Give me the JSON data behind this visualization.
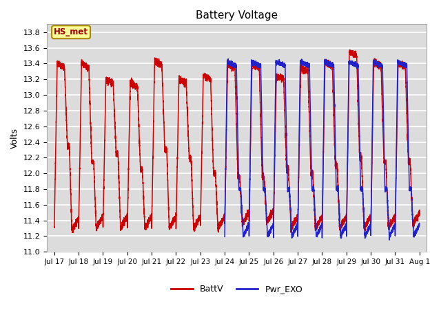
{
  "title": "Battery Voltage",
  "ylabel": "Volts",
  "ylim": [
    11.0,
    13.9
  ],
  "yticks": [
    11.0,
    11.2,
    11.4,
    11.6,
    11.8,
    12.0,
    12.2,
    12.4,
    12.6,
    12.8,
    13.0,
    13.2,
    13.4,
    13.6,
    13.8
  ],
  "plot_bg_color": "#dcdcdc",
  "grid_color": "white",
  "line_color_red": "#cc0000",
  "line_color_blue": "#2222cc",
  "annotation_text": "HS_met",
  "annotation_bg": "#ffff99",
  "annotation_border": "#aa8800",
  "legend_labels": [
    "BattV",
    "Pwr_EXO"
  ],
  "x_tick_labels": [
    "Jul 17",
    "Jul 18",
    "Jul 19",
    "Jul 20",
    "Jul 21",
    "Jul 22",
    "Jul 23",
    "Jul 24",
    "Jul 25",
    "Jul 26",
    "Jul 27",
    "Jul 28",
    "Jul 29",
    "Jul 30",
    "Jul 31",
    "Aug 1"
  ],
  "x_tick_positions": [
    17,
    18,
    19,
    20,
    21,
    22,
    23,
    24,
    25,
    26,
    27,
    28,
    29,
    30,
    31,
    32
  ],
  "xlim": [
    16.7,
    32.3
  ]
}
